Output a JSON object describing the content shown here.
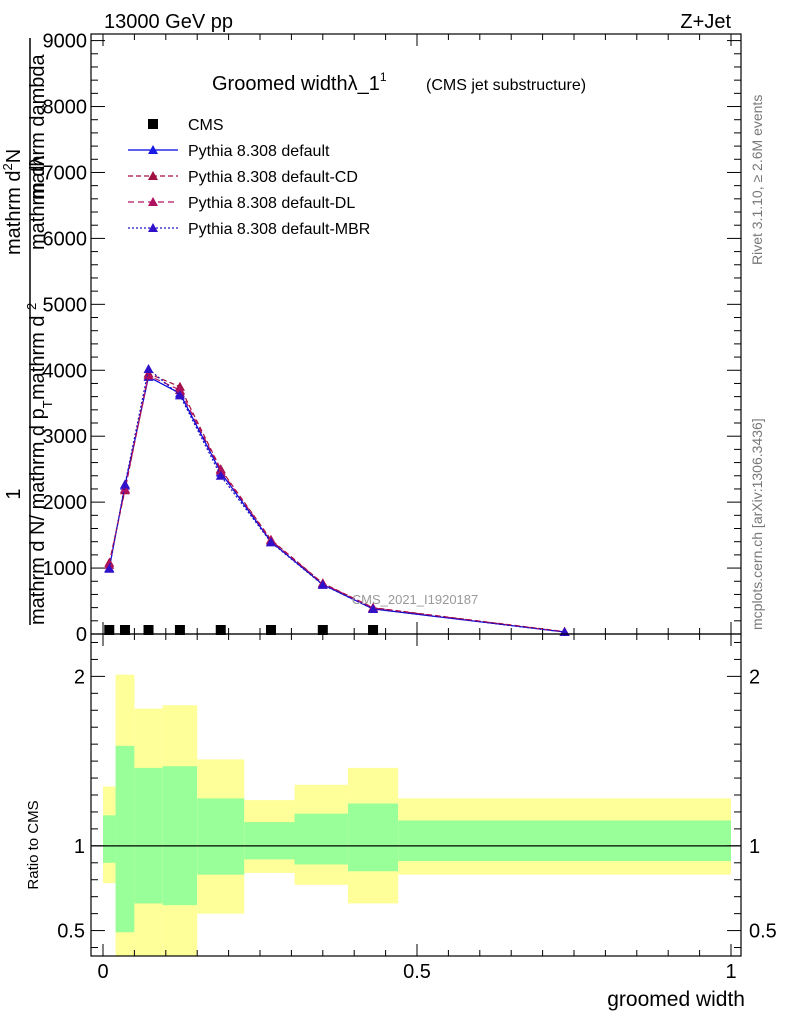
{
  "header": {
    "energy_label": "13000 GeV pp",
    "process_label": "Z+Jet",
    "rivet_label": "Rivet 3.1.10, ≥ 2.6M events",
    "mcplots_label": "mcplots.cern.ch [arXiv:1306.3436]",
    "analysis_watermark": "CMS_2021_I1920187"
  },
  "chart_data": [
    {
      "type": "line",
      "title": "Groomed widthλ_1",
      "title_sup": "1",
      "subtitle": "(CMS jet substructure)",
      "ylabel_num": "1",
      "ylabel_den": "mathrm d N",
      "ylabel_den_rest": "/ mathrm d p",
      "ylabel_den_sub": "T",
      "ylabel_mid": "mathrm d ",
      "ylabel_tail": "mathrm dλ",
      "ylabel_lambda": "mathrm dambda",
      "ylabel_mathrm_dN": "mathrm d",
      "ylabel_N": "N",
      "ylabel_sup2": "2",
      "xlim": [
        0,
        1
      ],
      "ylim": [
        0,
        9100
      ],
      "yticks": [
        {
          "value": 0,
          "label": "0"
        },
        {
          "value": 1000,
          "label": "1000"
        },
        {
          "value": 2000,
          "label": "2000"
        },
        {
          "value": 3000,
          "label": "3000"
        },
        {
          "value": 4000,
          "label": "4000"
        },
        {
          "value": 5000,
          "label": "5000"
        },
        {
          "value": 6000,
          "label": "6000"
        },
        {
          "value": 7000,
          "label": "7000"
        },
        {
          "value": 8000,
          "label": "8000"
        },
        {
          "value": 9000,
          "label": "9000"
        }
      ],
      "legend_position": "top-left",
      "cms": {
        "name": "CMS",
        "color": "#000000",
        "x": [
          0.01,
          0.035,
          0.0725,
          0.1225,
          0.1875,
          0.2675,
          0.35,
          0.43
        ],
        "y": [
          0,
          0,
          0,
          0,
          0,
          0,
          0,
          0
        ]
      },
      "series": [
        {
          "name": "Pythia 8.308 default",
          "color": "#0000e0",
          "dash": "",
          "marker_color": "#1a1ae6",
          "x": [
            0.01,
            0.035,
            0.0725,
            0.1225,
            0.1875,
            0.2675,
            0.35,
            0.43,
            0.735
          ],
          "y": [
            1000,
            2250,
            3900,
            3650,
            2450,
            1400,
            750,
            380,
            30
          ]
        },
        {
          "name": "Pythia 8.308 default-CD",
          "color": "#a01040",
          "dash": "5,3",
          "marker_color": "#a01040",
          "x": [
            0.01,
            0.035,
            0.0725,
            0.1225,
            0.1875,
            0.2675,
            0.35,
            0.43,
            0.735
          ],
          "y": [
            1080,
            2180,
            3950,
            3750,
            2500,
            1430,
            770,
            400,
            35
          ]
        },
        {
          "name": "Pythia 8.308 default-DL",
          "color": "#b01060",
          "dash": "6,4",
          "marker_color": "#b01060",
          "x": [
            0.01,
            0.035,
            0.0725,
            0.1225,
            0.1875,
            0.2675,
            0.35,
            0.43,
            0.735
          ],
          "y": [
            1050,
            2200,
            3920,
            3700,
            2480,
            1420,
            765,
            395,
            33
          ]
        },
        {
          "name": "Pythia 8.308 default-MBR",
          "color": "#2010c0",
          "dash": "2,2",
          "marker_color": "#3010c8",
          "x": [
            0.01,
            0.035,
            0.0725,
            0.1225,
            0.1875,
            0.2675,
            0.35,
            0.43,
            0.735
          ],
          "y": [
            990,
            2270,
            4020,
            3620,
            2400,
            1390,
            745,
            380,
            30
          ]
        }
      ]
    },
    {
      "type": "area",
      "ylabel": "Ratio to CMS",
      "xlabel": "groomed width",
      "xlim": [
        0,
        1
      ],
      "ylim": [
        0.35,
        2.25
      ],
      "yticks": [
        {
          "value": 0.5,
          "label": "0.5"
        },
        {
          "value": 1,
          "label": "1"
        },
        {
          "value": 2,
          "label": "2"
        }
      ],
      "xticks": [
        {
          "value": 0,
          "label": "0"
        },
        {
          "value": 0.5,
          "label": "0.5"
        },
        {
          "value": 1,
          "label": "1"
        }
      ],
      "bins": [
        {
          "x0": 0.0,
          "x1": 0.02,
          "y_lo": 0.78,
          "y_hi": 1.35,
          "g_lo": 0.9,
          "g_hi": 1.18
        },
        {
          "x0": 0.02,
          "x1": 0.05,
          "y_lo": 0.35,
          "y_hi": 2.01,
          "g_lo": 0.49,
          "g_hi": 1.59
        },
        {
          "x0": 0.05,
          "x1": 0.095,
          "y_lo": 0.35,
          "y_hi": 1.81,
          "g_lo": 0.66,
          "g_hi": 1.46
        },
        {
          "x0": 0.095,
          "x1": 0.15,
          "y_lo": 0.35,
          "y_hi": 1.83,
          "g_lo": 0.65,
          "g_hi": 1.47
        },
        {
          "x0": 0.15,
          "x1": 0.225,
          "y_lo": 0.6,
          "y_hi": 1.51,
          "g_lo": 0.83,
          "g_hi": 1.28
        },
        {
          "x0": 0.225,
          "x1": 0.305,
          "y_lo": 0.84,
          "y_hi": 1.27,
          "g_lo": 0.92,
          "g_hi": 1.14
        },
        {
          "x0": 0.305,
          "x1": 0.39,
          "y_lo": 0.77,
          "y_hi": 1.36,
          "g_lo": 0.89,
          "g_hi": 1.19
        },
        {
          "x0": 0.39,
          "x1": 0.47,
          "y_lo": 0.66,
          "y_hi": 1.46,
          "g_lo": 0.85,
          "g_hi": 1.25
        },
        {
          "x0": 0.47,
          "x1": 1.0,
          "y_lo": 0.83,
          "y_hi": 1.28,
          "g_lo": 0.91,
          "g_hi": 1.15
        }
      ],
      "colors": {
        "yellow": "#ffff99",
        "green": "#99ff99"
      }
    }
  ]
}
